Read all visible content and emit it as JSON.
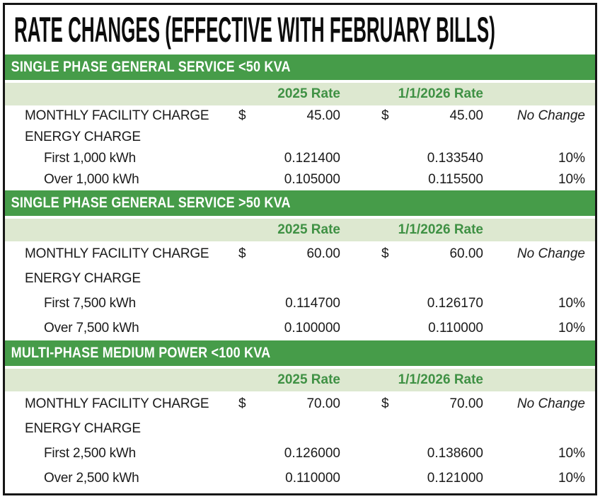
{
  "title": "RATE CHANGES (EFFECTIVE WITH FEBRUARY BILLS)",
  "columns": {
    "rate_2025": "2025 Rate",
    "rate_2026": "1/1/2026 Rate"
  },
  "colors": {
    "section_bar_green": "#469c49",
    "column_band_green": "#dde8d0",
    "column_header_text_green": "#3f9144",
    "body_text": "#1a1a1a",
    "border_black": "#161616"
  },
  "sections": [
    {
      "header": "SINGLE PHASE GENERAL SERVICE <50 KVA",
      "rows": [
        {
          "label": "MONTHLY FACILITY CHARGE",
          "cur25": "$",
          "rate25": "45.00",
          "cur26": "$",
          "rate26": "45.00",
          "change": "No Change"
        },
        {
          "label": "ENERGY CHARGE",
          "cur25": "",
          "rate25": "",
          "cur26": "",
          "rate26": "",
          "change": ""
        },
        {
          "label": "First 1,000 kWh",
          "cur25": "",
          "rate25": "0.121400",
          "cur26": "",
          "rate26": "0.133540",
          "change": "10%"
        },
        {
          "label": "Over 1,000 kWh",
          "cur25": "",
          "rate25": "0.105000",
          "cur26": "",
          "rate26": "0.115500",
          "change": "10%"
        }
      ]
    },
    {
      "header": "SINGLE PHASE GENERAL SERVICE >50 KVA",
      "rows": [
        {
          "label": "MONTHLY FACILITY CHARGE",
          "cur25": "$",
          "rate25": "60.00",
          "cur26": "$",
          "rate26": "60.00",
          "change": "No Change"
        },
        {
          "label": "ENERGY CHARGE",
          "cur25": "",
          "rate25": "",
          "cur26": "",
          "rate26": "",
          "change": ""
        },
        {
          "label": "First 7,500 kWh",
          "cur25": "",
          "rate25": "0.114700",
          "cur26": "",
          "rate26": "0.126170",
          "change": "10%"
        },
        {
          "label": "Over 7,500 kWh",
          "cur25": "",
          "rate25": "0.100000",
          "cur26": "",
          "rate26": "0.110000",
          "change": "10%"
        }
      ]
    },
    {
      "header": "MULTI-PHASE MEDIUM POWER <100 KVA",
      "rows": [
        {
          "label": "MONTHLY FACILITY CHARGE",
          "cur25": "$",
          "rate25": "70.00",
          "cur26": "$",
          "rate26": "70.00",
          "change": "No Change"
        },
        {
          "label": "ENERGY CHARGE",
          "cur25": "",
          "rate25": "",
          "cur26": "",
          "rate26": "",
          "change": ""
        },
        {
          "label": "First 2,500 kWh",
          "cur25": "",
          "rate25": "0.126000",
          "cur26": "",
          "rate26": "0.138600",
          "change": "10%"
        },
        {
          "label": "Over 2,500 kWh",
          "cur25": "",
          "rate25": "0.110000",
          "cur26": "",
          "rate26": "0.121000",
          "change": "10%"
        }
      ]
    }
  ]
}
